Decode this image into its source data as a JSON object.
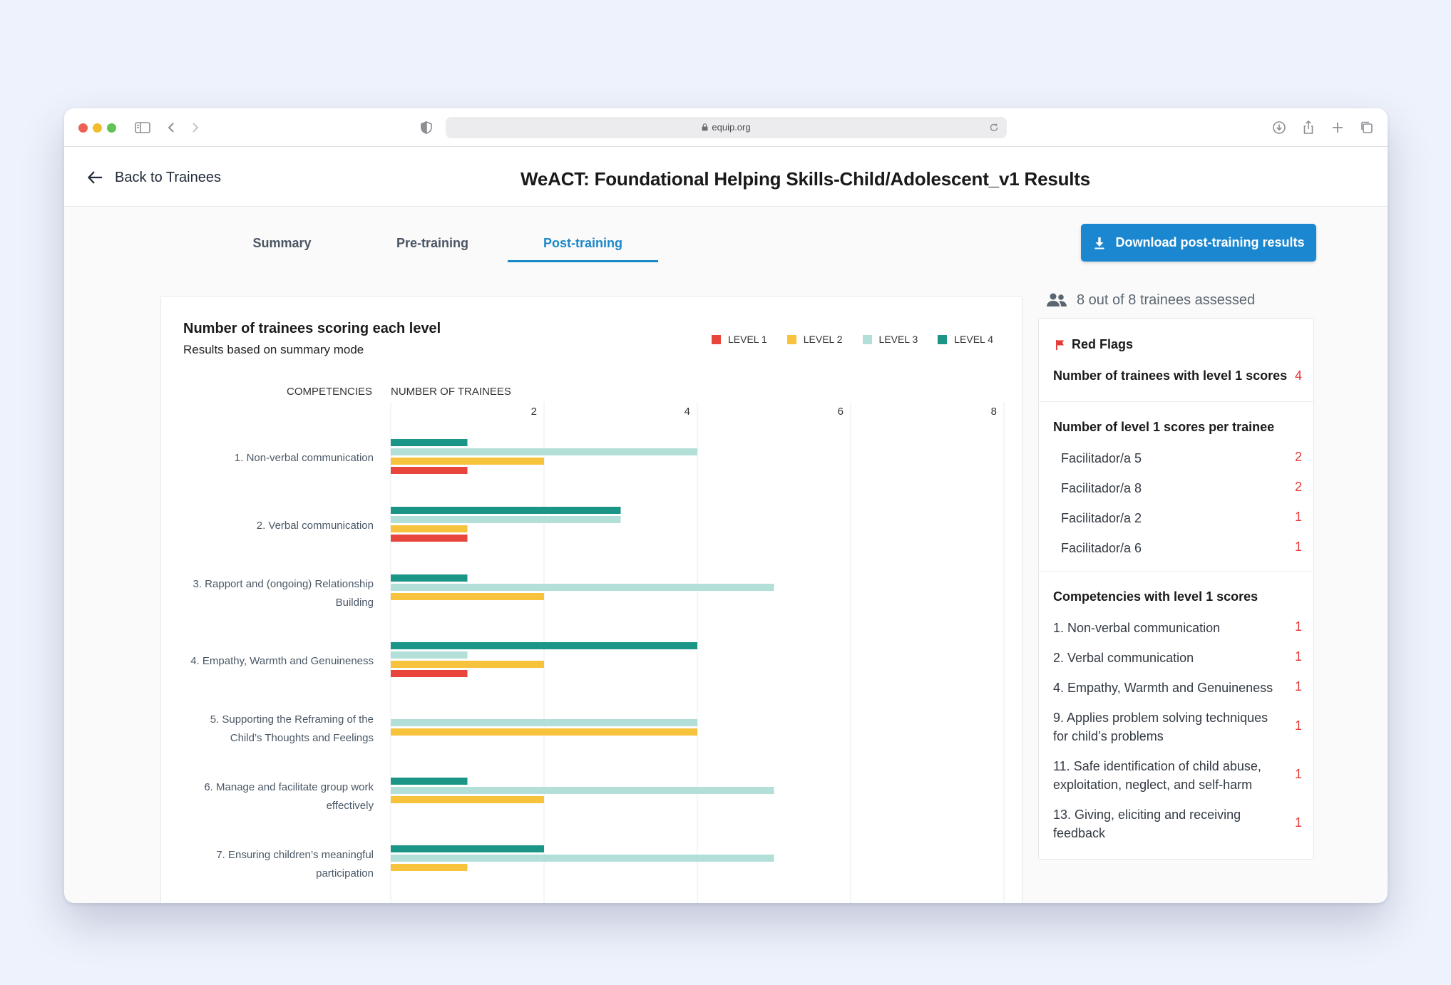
{
  "browser": {
    "url": "equip.org"
  },
  "header": {
    "back_label": "Back to Trainees",
    "title": "WeACT: Foundational Helping Skills-Child/Adolescent_v1 Results"
  },
  "tabs": [
    {
      "label": "Summary",
      "active": false
    },
    {
      "label": "Pre-training",
      "active": false
    },
    {
      "label": "Post-training",
      "active": true
    }
  ],
  "download_label": "Download post-training results",
  "chart": {
    "title": "Number of trainees scoring each level",
    "subtitle": "Results based on summary mode",
    "col_competencies": "COMPETENCIES",
    "col_number": "NUMBER OF TRAINEES",
    "legend": [
      "LEVEL 1",
      "LEVEL 2",
      "LEVEL 3",
      "LEVEL 4"
    ]
  },
  "colors": {
    "level1": "#e8453c",
    "level2": "#f7c23c",
    "level3": "#b3dfd9",
    "level4": "#1b9686",
    "accent": "#1b87d0",
    "red_value": "#e53935"
  },
  "chart_data": {
    "type": "bar",
    "orientation": "horizontal",
    "categories": [
      "1. Non-verbal communication",
      "2. Verbal communication",
      "3. Rapport and (ongoing) Relationship Building",
      "4. Empathy, Warmth and Genuineness",
      "5. Supporting the Reframing of the Child’s Thoughts and Feelings",
      "6. Manage and facilitate group work effectively",
      "7. Ensuring children’s meaningful participation"
    ],
    "category_lines": [
      [
        "1. Non-verbal communication"
      ],
      [
        "2. Verbal communication"
      ],
      [
        "3. Rapport and (ongoing) Relationship",
        "Building"
      ],
      [
        "4. Empathy, Warmth and Genuineness"
      ],
      [
        "5. Supporting the Reframing of the",
        "Child’s Thoughts and Feelings"
      ],
      [
        "6. Manage and facilitate group work",
        "effectively"
      ],
      [
        "7. Ensuring children’s meaningful",
        "participation"
      ]
    ],
    "series": [
      {
        "name": "LEVEL 4",
        "values": [
          1,
          3,
          1,
          4,
          0,
          1,
          2
        ]
      },
      {
        "name": "LEVEL 3",
        "values": [
          4,
          3,
          5,
          1,
          4,
          5,
          5
        ]
      },
      {
        "name": "LEVEL 2",
        "values": [
          2,
          1,
          2,
          2,
          4,
          2,
          1
        ]
      },
      {
        "name": "LEVEL 1",
        "values": [
          1,
          1,
          0,
          1,
          0,
          0,
          0
        ]
      }
    ],
    "xlabel": "NUMBER OF TRAINEES",
    "ylabel": "COMPETENCIES",
    "xlim": [
      0,
      8
    ],
    "xticks": [
      2,
      4,
      6,
      8
    ],
    "grid": true,
    "legend_position": "top-right"
  },
  "summary": {
    "assessed": "8 out of 8 trainees assessed",
    "red_flags_label": "Red Flags",
    "level1_trainees_label": "Number of trainees with level 1 scores",
    "level1_trainees_value": "4",
    "per_trainee_label": "Number of level 1 scores per trainee",
    "per_trainee": [
      {
        "name": "Facilitador/a 5",
        "value": "2"
      },
      {
        "name": "Facilitador/a 8",
        "value": "2"
      },
      {
        "name": "Facilitador/a 2",
        "value": "1"
      },
      {
        "name": "Facilitador/a 6",
        "value": "1"
      }
    ],
    "competencies_label": "Competencies with level 1 scores",
    "competencies": [
      {
        "lines": [
          "1. Non-verbal communication"
        ],
        "value": "1"
      },
      {
        "lines": [
          "2. Verbal communication"
        ],
        "value": "1"
      },
      {
        "lines": [
          "4. Empathy, Warmth and Genuineness"
        ],
        "value": "1"
      },
      {
        "lines": [
          "9. Applies problem solving techniques",
          "for child’s problems"
        ],
        "value": "1"
      },
      {
        "lines": [
          "11. Safe identification of child abuse,",
          "exploitation, neglect, and self-harm"
        ],
        "value": "1"
      },
      {
        "lines": [
          "13. Giving, eliciting and receiving",
          "feedback"
        ],
        "value": "1"
      }
    ]
  }
}
